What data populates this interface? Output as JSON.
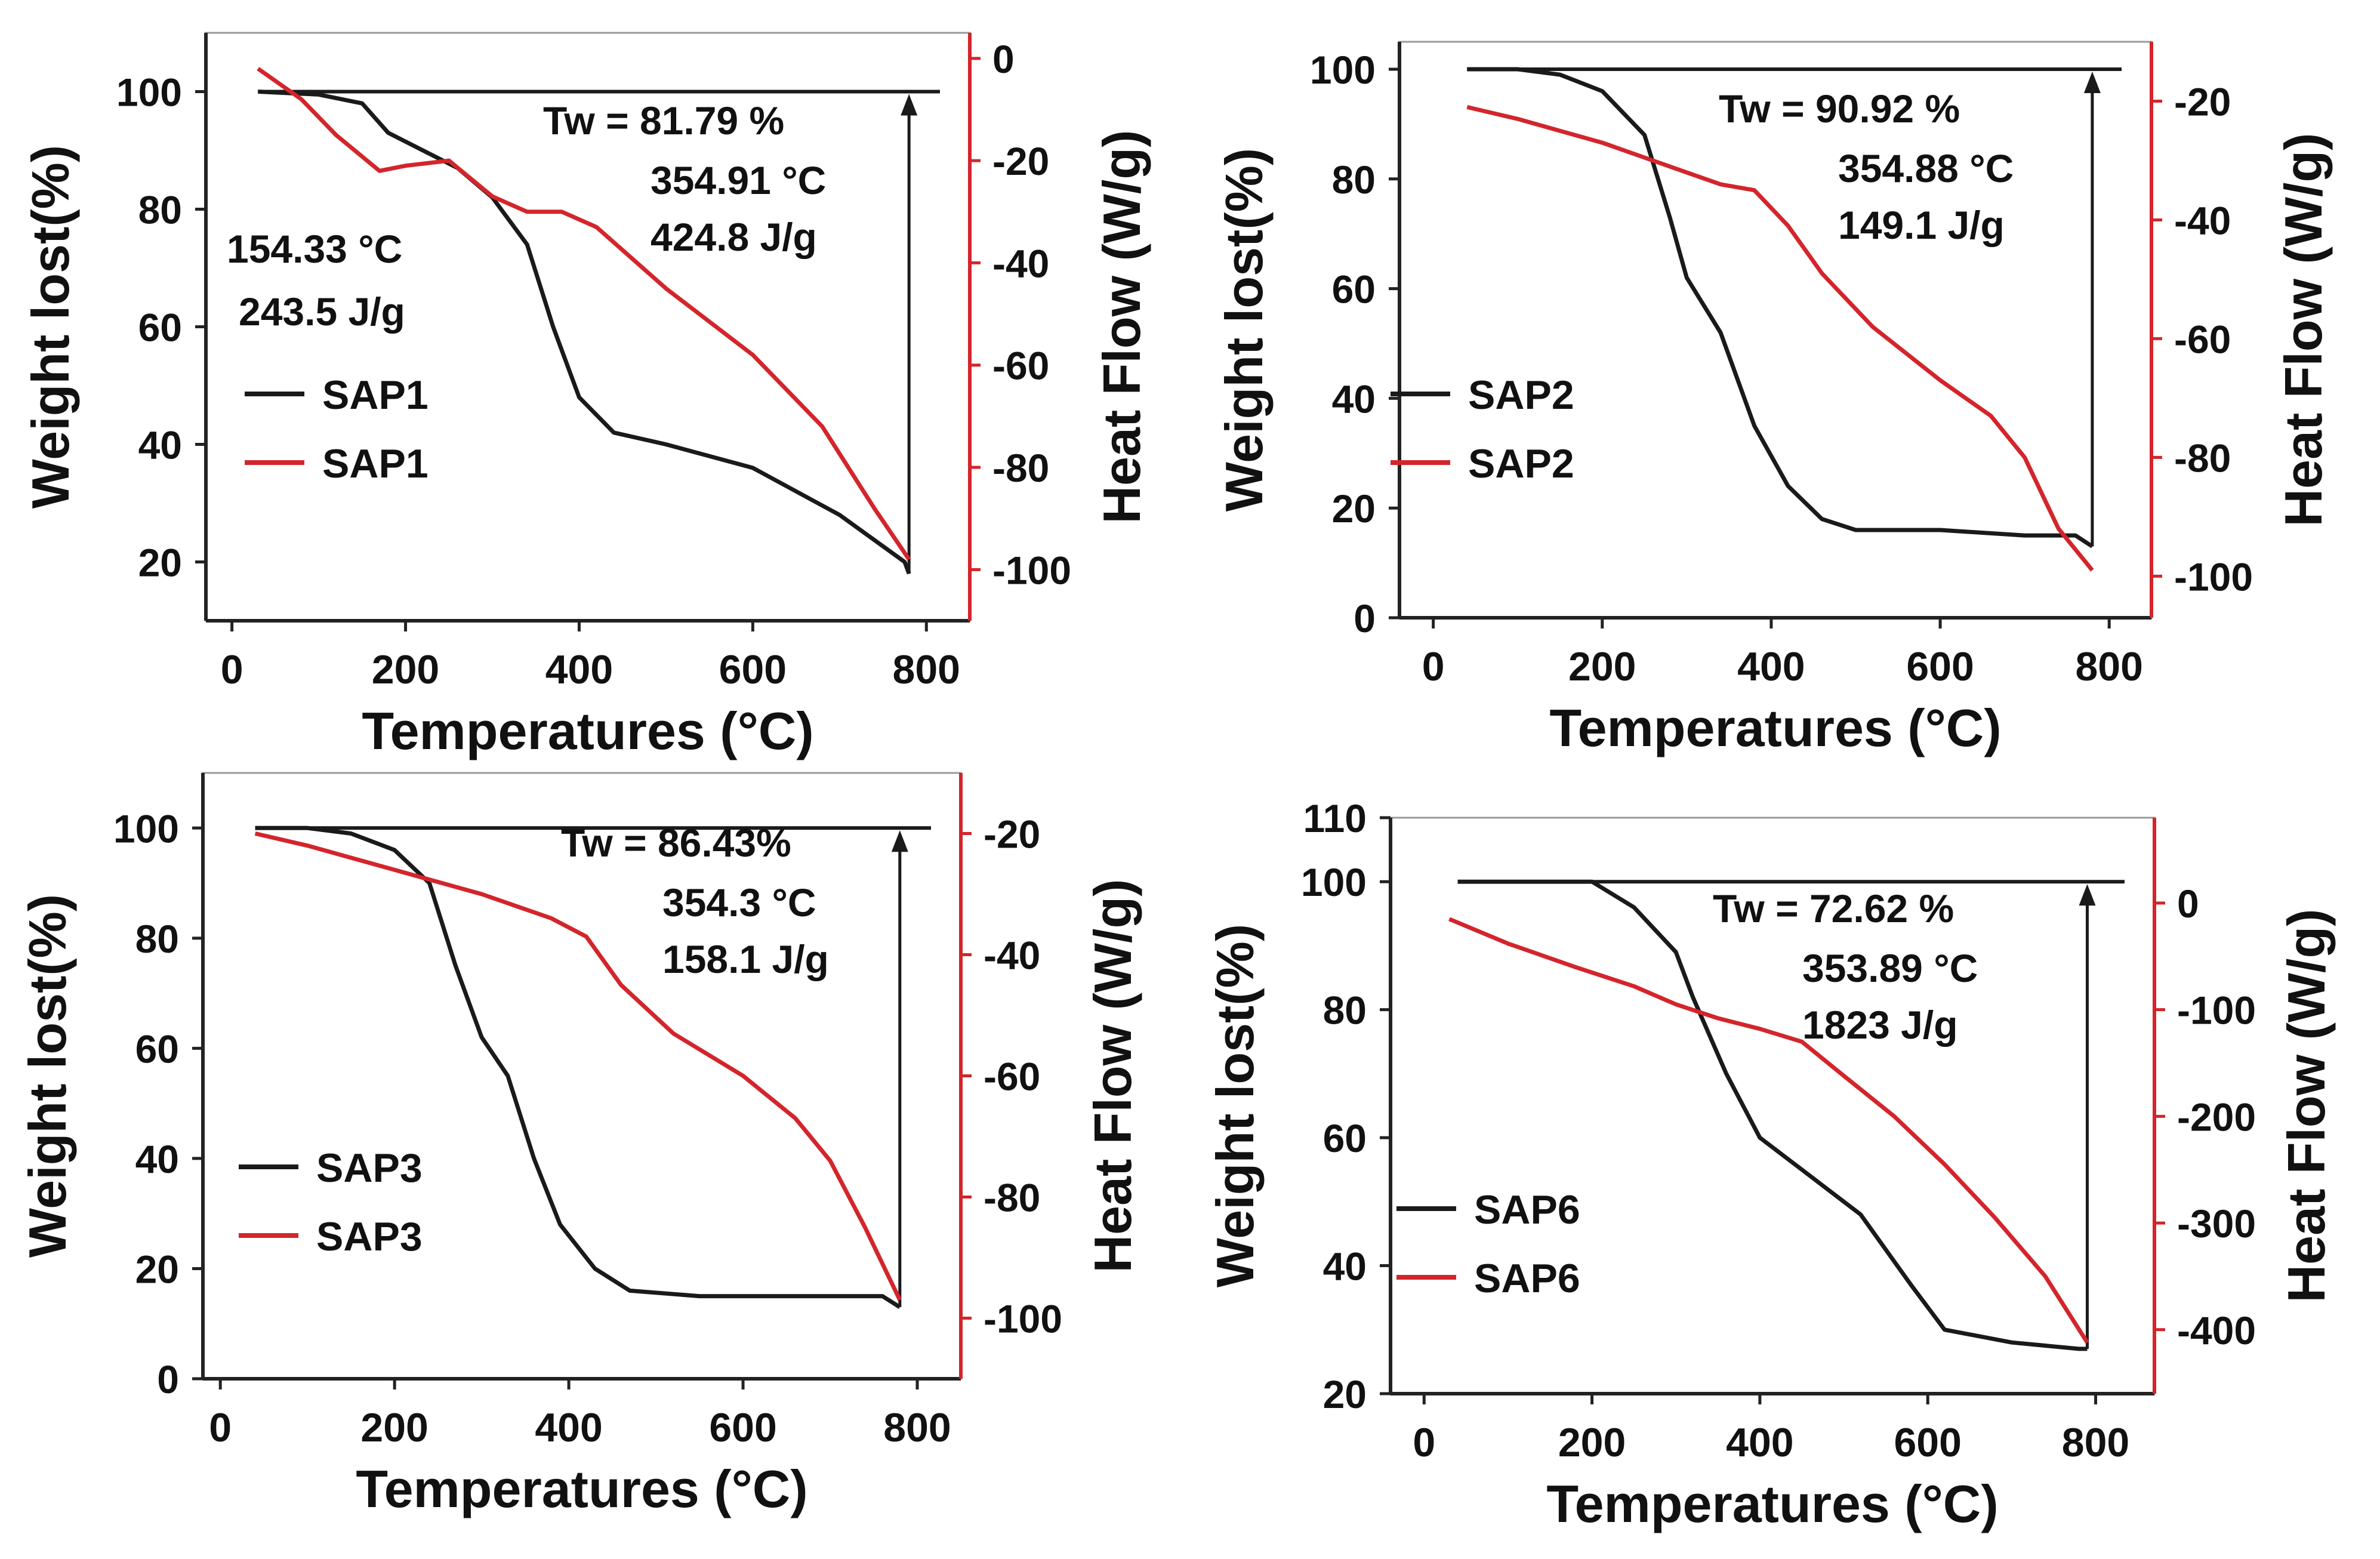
{
  "colors": {
    "tga": "#1a1a1a",
    "dsc": "#d3252b",
    "axis_dark": "#222222",
    "axis_red": "#d3252b"
  },
  "chart_data": [
    {
      "type": "line",
      "name": "SAP1",
      "xlabel": "Temperatures (°C)",
      "ylabel": "Weight lost(%)",
      "y2label": "Heat Flow (W/g)",
      "xlim": [
        -30,
        850
      ],
      "ylim": [
        10,
        110
      ],
      "y2lim": [
        -110,
        5
      ],
      "xticks": [
        0,
        200,
        400,
        600,
        800
      ],
      "yticks": [
        20,
        40,
        60,
        80,
        100
      ],
      "y2ticks": [
        0,
        -20,
        -40,
        -60,
        -80,
        -100
      ],
      "annotations": [
        "Tw = 81.79 %",
        "354.91 °C",
        "424.8 J/g",
        "154.33 °C",
        "243.5 J/g"
      ],
      "series": [
        {
          "name": "SAP1",
          "axis": "left",
          "color": "tga",
          "points": [
            [
              30,
              100
            ],
            [
              100,
              99.5
            ],
            [
              150,
              98
            ],
            [
              180,
              93
            ],
            [
              220,
              90
            ],
            [
              260,
              87
            ],
            [
              300,
              82
            ],
            [
              340,
              74
            ],
            [
              370,
              60
            ],
            [
              400,
              48
            ],
            [
              440,
              42
            ],
            [
              500,
              40
            ],
            [
              600,
              36
            ],
            [
              700,
              28
            ],
            [
              775,
              20
            ],
            [
              780,
              18
            ]
          ]
        },
        {
          "name": "SAP1",
          "axis": "right",
          "color": "dsc",
          "points": [
            [
              30,
              -2
            ],
            [
              80,
              -8
            ],
            [
              120,
              -15
            ],
            [
              170,
              -22
            ],
            [
              200,
              -21
            ],
            [
              250,
              -20
            ],
            [
              300,
              -27
            ],
            [
              340,
              -30
            ],
            [
              380,
              -30
            ],
            [
              420,
              -33
            ],
            [
              500,
              -45
            ],
            [
              600,
              -58
            ],
            [
              680,
              -72
            ],
            [
              740,
              -88
            ],
            [
              780,
              -98
            ]
          ]
        }
      ]
    },
    {
      "type": "line",
      "name": "SAP2",
      "xlabel": "Temperatures (°C)",
      "ylabel": "Weight lost(%)",
      "y2label": "Heat Flow (W/g)",
      "xlim": [
        -40,
        850
      ],
      "ylim": [
        0,
        105
      ],
      "y2lim": [
        -107,
        -10
      ],
      "xticks": [
        0,
        200,
        400,
        600,
        800
      ],
      "yticks": [
        0,
        20,
        40,
        60,
        80,
        100
      ],
      "y2ticks": [
        -20,
        -40,
        -60,
        -80,
        -100
      ],
      "annotations": [
        "Tw = 90.92 %",
        "354.88 °C",
        "149.1 J/g"
      ],
      "series": [
        {
          "name": "SAP2",
          "axis": "left",
          "color": "tga",
          "points": [
            [
              40,
              100
            ],
            [
              100,
              100
            ],
            [
              150,
              99
            ],
            [
              200,
              96
            ],
            [
              250,
              88
            ],
            [
              280,
              73
            ],
            [
              300,
              62
            ],
            [
              340,
              52
            ],
            [
              380,
              35
            ],
            [
              420,
              24
            ],
            [
              460,
              18
            ],
            [
              500,
              16
            ],
            [
              600,
              16
            ],
            [
              700,
              15
            ],
            [
              760,
              15
            ],
            [
              780,
              13
            ]
          ]
        },
        {
          "name": "SAP2",
          "axis": "right",
          "color": "dsc",
          "points": [
            [
              40,
              -21
            ],
            [
              100,
              -23
            ],
            [
              150,
              -25
            ],
            [
              200,
              -27
            ],
            [
              260,
              -30
            ],
            [
              300,
              -32
            ],
            [
              340,
              -34
            ],
            [
              380,
              -35
            ],
            [
              420,
              -41
            ],
            [
              460,
              -49
            ],
            [
              520,
              -58
            ],
            [
              600,
              -67
            ],
            [
              660,
              -73
            ],
            [
              700,
              -80
            ],
            [
              740,
              -92
            ],
            [
              780,
              -99
            ]
          ]
        }
      ]
    },
    {
      "type": "line",
      "name": "SAP3",
      "xlabel": "Temperatures (°C)",
      "ylabel": "Weight lost(%)",
      "y2label": "Heat Flow (W/g)",
      "xlim": [
        -20,
        850
      ],
      "ylim": [
        0,
        110
      ],
      "y2lim": [
        -110,
        -10
      ],
      "xticks": [
        0,
        200,
        400,
        600,
        800
      ],
      "yticks": [
        0,
        20,
        40,
        60,
        80,
        100
      ],
      "y2ticks": [
        -20,
        -40,
        -60,
        -80,
        -100
      ],
      "annotations": [
        "Tw = 86.43%",
        "354.3 °C",
        "158.1 J/g"
      ],
      "series": [
        {
          "name": "SAP3",
          "axis": "left",
          "color": "tga",
          "points": [
            [
              40,
              100
            ],
            [
              100,
              100
            ],
            [
              150,
              99
            ],
            [
              200,
              96
            ],
            [
              240,
              90
            ],
            [
              270,
              75
            ],
            [
              300,
              62
            ],
            [
              330,
              55
            ],
            [
              360,
              40
            ],
            [
              390,
              28
            ],
            [
              430,
              20
            ],
            [
              470,
              16
            ],
            [
              550,
              15
            ],
            [
              650,
              15
            ],
            [
              760,
              15
            ],
            [
              780,
              13
            ]
          ]
        },
        {
          "name": "SAP3",
          "axis": "right",
          "color": "dsc",
          "points": [
            [
              40,
              -20
            ],
            [
              100,
              -22
            ],
            [
              150,
              -24
            ],
            [
              200,
              -26
            ],
            [
              250,
              -28
            ],
            [
              300,
              -30
            ],
            [
              340,
              -32
            ],
            [
              380,
              -34
            ],
            [
              420,
              -37
            ],
            [
              460,
              -45
            ],
            [
              520,
              -53
            ],
            [
              600,
              -60
            ],
            [
              660,
              -67
            ],
            [
              700,
              -74
            ],
            [
              740,
              -85
            ],
            [
              780,
              -97
            ]
          ]
        }
      ]
    },
    {
      "type": "line",
      "name": "SAP6",
      "xlabel": "Temperatures (°C)",
      "ylabel": "Weight lost(%)",
      "y2label": "Heat Flow (W/g)",
      "xlim": [
        -40,
        870
      ],
      "ylim": [
        20,
        110
      ],
      "y2lim": [
        -460,
        80
      ],
      "xticks": [
        0,
        200,
        400,
        600,
        800
      ],
      "yticks": [
        20,
        40,
        60,
        80,
        100,
        110
      ],
      "y2ticks": [
        0,
        -100,
        -200,
        -300,
        -400
      ],
      "annotations": [
        "Tw = 72.62 %",
        "353.89 °C",
        "1823 J/g"
      ],
      "series": [
        {
          "name": "SAP6",
          "axis": "left",
          "color": "tga",
          "points": [
            [
              40,
              100
            ],
            [
              100,
              100
            ],
            [
              150,
              100
            ],
            [
              200,
              100
            ],
            [
              250,
              96
            ],
            [
              300,
              89
            ],
            [
              320,
              82
            ],
            [
              360,
              70
            ],
            [
              400,
              60
            ],
            [
              460,
              54
            ],
            [
              520,
              48
            ],
            [
              580,
              37
            ],
            [
              620,
              30
            ],
            [
              700,
              28
            ],
            [
              780,
              27
            ],
            [
              790,
              27
            ]
          ]
        },
        {
          "name": "SAP6",
          "axis": "right",
          "color": "dsc",
          "points": [
            [
              30,
              -15
            ],
            [
              100,
              -38
            ],
            [
              180,
              -60
            ],
            [
              250,
              -78
            ],
            [
              300,
              -95
            ],
            [
              350,
              -108
            ],
            [
              400,
              -118
            ],
            [
              450,
              -130
            ],
            [
              500,
              -162
            ],
            [
              560,
              -200
            ],
            [
              620,
              -245
            ],
            [
              680,
              -295
            ],
            [
              740,
              -350
            ],
            [
              790,
              -412
            ]
          ]
        }
      ]
    }
  ]
}
